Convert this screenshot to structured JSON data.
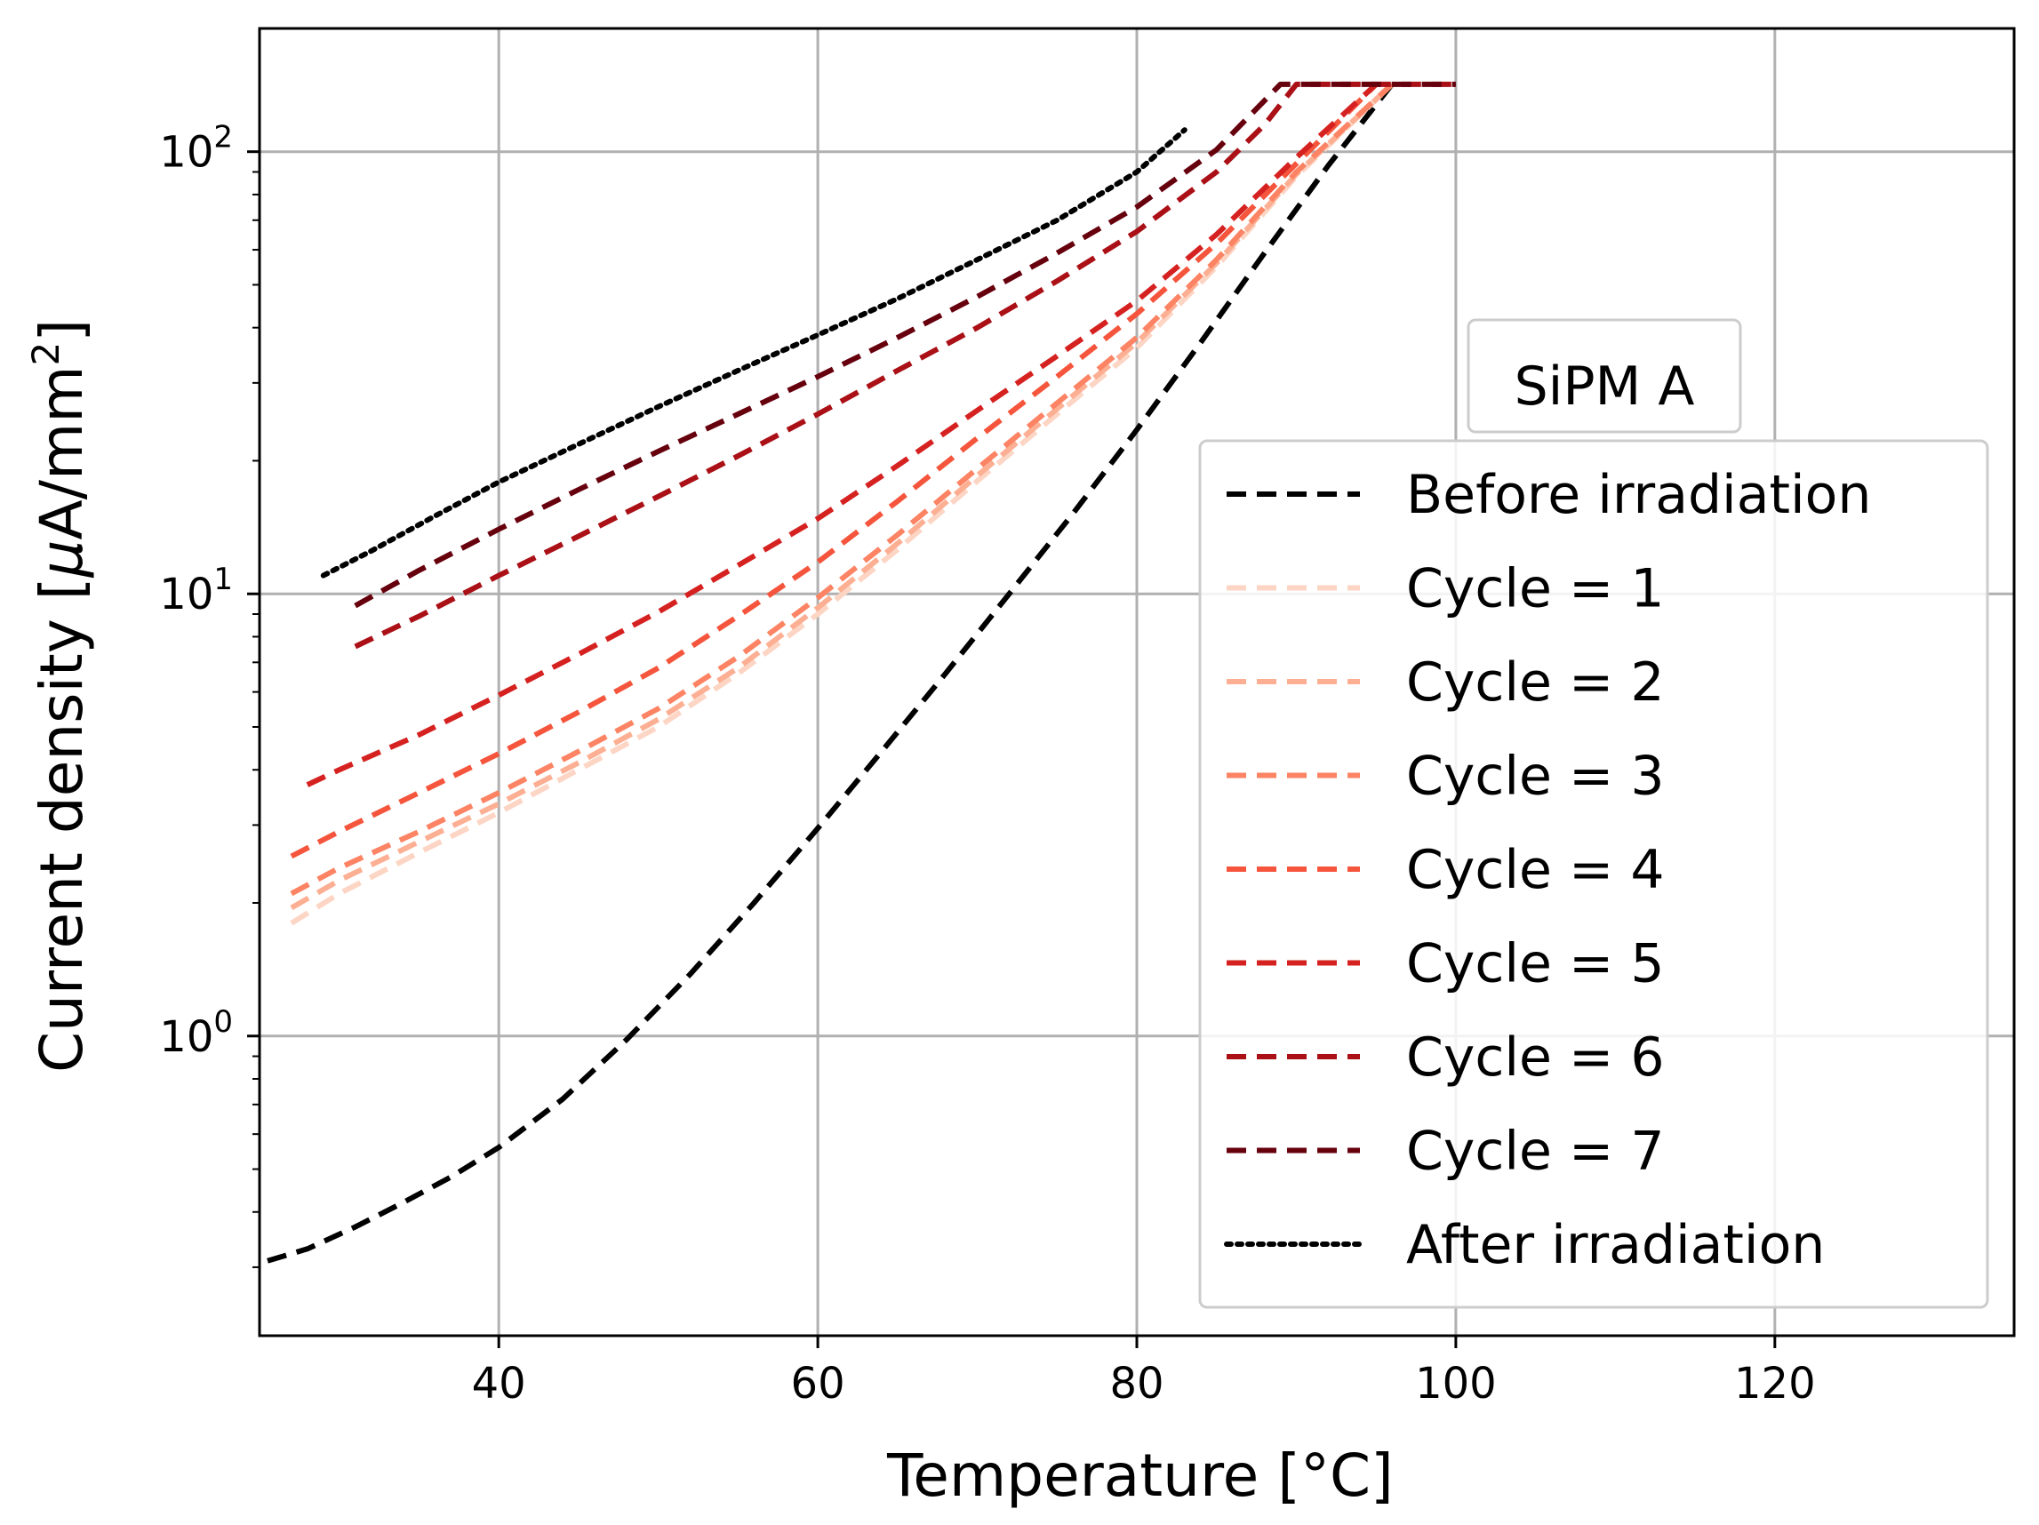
{
  "chart_data": {
    "type": "line",
    "title": "SiPM A",
    "xlabel": "Temperature [°C]",
    "ylabel_prefix": "Current density [",
    "ylabel_mu": "μ",
    "ylabel_unit": "A/mm",
    "ylabel_sup": "2",
    "ylabel_suffix": "]",
    "yscale": "log",
    "xlim": [
      25,
      135
    ],
    "ylim": [
      0.21,
      190
    ],
    "xticks": [
      40,
      60,
      80,
      100,
      120
    ],
    "xtick_labels": [
      "40",
      "60",
      "80",
      "100",
      "120"
    ],
    "yticks": [
      {
        "value": 1,
        "base": "10",
        "exp": "0"
      },
      {
        "value": 10,
        "base": "10",
        "exp": "1"
      },
      {
        "value": 100,
        "base": "10",
        "exp": "2"
      }
    ],
    "grid": true,
    "legend_position": "center-right",
    "series": [
      {
        "name": "Before irradiation",
        "color": "#000000",
        "style": "dashed",
        "x": [
          25.5,
          28,
          31,
          34,
          37,
          40,
          44,
          48,
          52,
          56,
          60,
          64,
          68,
          72,
          76,
          80,
          84,
          88,
          92,
          96
        ],
        "y": [
          0.31,
          0.33,
          0.37,
          0.42,
          0.48,
          0.56,
          0.72,
          0.98,
          1.38,
          2.0,
          2.95,
          4.4,
          6.6,
          10.0,
          15.2,
          23.5,
          37,
          59,
          93,
          142
        ]
      },
      {
        "name": "Cycle = 1",
        "color": "#fdd5c4",
        "style": "dashed",
        "x": [
          27,
          30,
          35,
          40,
          45,
          50,
          55,
          60,
          65,
          70,
          75,
          80,
          85,
          90,
          96
        ],
        "y": [
          1.8,
          2.1,
          2.6,
          3.2,
          4.0,
          5.0,
          6.6,
          9.0,
          12.6,
          18.0,
          25.5,
          36,
          55,
          88,
          142
        ]
      },
      {
        "name": "Cycle = 2",
        "color": "#fcaf93",
        "style": "dashed",
        "x": [
          27,
          30,
          35,
          40,
          45,
          50,
          55,
          60,
          65,
          70,
          75,
          80,
          85,
          90,
          96
        ],
        "y": [
          1.95,
          2.25,
          2.75,
          3.35,
          4.15,
          5.2,
          6.8,
          9.3,
          13.0,
          18.5,
          26.2,
          37,
          56,
          89,
          142
        ]
      },
      {
        "name": "Cycle = 3",
        "color": "#fc8363",
        "style": "dashed",
        "x": [
          27,
          30,
          35,
          40,
          45,
          50,
          55,
          60,
          65,
          70,
          75,
          80,
          85,
          90,
          96
        ],
        "y": [
          2.1,
          2.4,
          2.9,
          3.55,
          4.4,
          5.5,
          7.2,
          9.8,
          13.6,
          19.2,
          27,
          38,
          57,
          90,
          142
        ]
      },
      {
        "name": "Cycle = 4",
        "color": "#f5553c",
        "style": "dashed",
        "x": [
          27,
          30,
          35,
          40,
          45,
          50,
          55,
          60,
          65,
          70,
          75,
          80,
          85,
          90,
          95
        ],
        "y": [
          2.55,
          2.9,
          3.55,
          4.35,
          5.4,
          6.8,
          8.9,
          11.8,
          16.2,
          22.5,
          31,
          43,
          62,
          94,
          142
        ]
      },
      {
        "name": "Cycle = 5",
        "color": "#d52221",
        "style": "dashed",
        "x": [
          28,
          30,
          35,
          40,
          45,
          50,
          55,
          60,
          65,
          70,
          75,
          80,
          85,
          90,
          95
        ],
        "y": [
          3.7,
          4.0,
          4.8,
          5.9,
          7.3,
          9.1,
          11.6,
          14.8,
          19.5,
          26,
          34.5,
          46,
          65,
          97,
          142
        ]
      },
      {
        "name": "Cycle = 6",
        "color": "#aa1016",
        "style": "dashed",
        "x": [
          31,
          35,
          40,
          45,
          50,
          55,
          60,
          65,
          70,
          75,
          80,
          85,
          88,
          90,
          100
        ],
        "y": [
          7.6,
          8.9,
          11.0,
          13.5,
          16.6,
          20.5,
          25.5,
          32,
          40,
          51,
          66,
          90,
          115,
          142,
          142
        ]
      },
      {
        "name": "Cycle = 7",
        "color": "#67000d",
        "style": "dashed",
        "x": [
          31,
          35,
          40,
          45,
          50,
          55,
          60,
          65,
          70,
          75,
          80,
          85,
          89,
          100
        ],
        "y": [
          9.4,
          11.3,
          14.0,
          17.2,
          21.0,
          25.5,
          31,
          38,
          47,
          59,
          75,
          101,
          142,
          142
        ]
      },
      {
        "name": "After irradiation",
        "color": "#000000",
        "style": "dotted",
        "x": [
          29,
          32,
          36,
          40,
          45,
          50,
          55,
          60,
          65,
          70,
          75,
          80,
          83
        ],
        "y": [
          11.0,
          12.5,
          15.0,
          17.9,
          21.8,
          26.5,
          32,
          38.5,
          46.5,
          57,
          70,
          90,
          112
        ]
      }
    ]
  }
}
